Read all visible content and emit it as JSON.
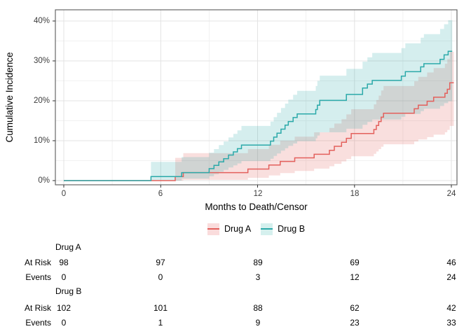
{
  "figure": {
    "y_axis": {
      "title": "Cumulative Incidence",
      "tick_labels": [
        "0%",
        "10%",
        "20%",
        "30%",
        "40%"
      ]
    },
    "x_axis": {
      "title": "Months to Death/Censor",
      "tick_labels": [
        "0",
        "6",
        "12",
        "18",
        "24"
      ]
    }
  },
  "legend": {
    "items": [
      {
        "label": "Drug A",
        "line_color": "#E3605C",
        "fill_color": "#FADCDC"
      },
      {
        "label": "Drug B",
        "line_color": "#2BA9A9",
        "fill_color": "#D5F0EE"
      }
    ]
  },
  "chart_data": {
    "type": "line",
    "subtype": "step-cumulative-incidence-with-confidence-bands",
    "title": "",
    "xlabel": "Months to Death/Censor",
    "ylabel": "Cumulative Incidence",
    "xlim": [
      0,
      24.35
    ],
    "ylim": [
      0,
      42.8
    ],
    "x_ticks": [
      0,
      6,
      12,
      18,
      24
    ],
    "y_ticks": [
      0,
      10,
      20,
      30,
      40
    ],
    "x_minor_ticks": [
      3,
      9,
      15,
      21
    ],
    "y_minor_ticks": [
      5,
      15,
      25,
      35
    ],
    "grid": true,
    "legend_position": "bottom",
    "band_opacity": 0.2,
    "point_format": [
      "month",
      "estimate_pct",
      "ci_lower_pct",
      "ci_upper_pct"
    ],
    "series": [
      {
        "name": "Drug A",
        "color": "#E3605C",
        "points": [
          [
            0,
            0,
            0,
            0
          ],
          [
            6.9,
            1.0,
            0,
            5.7
          ],
          [
            7.4,
            2.0,
            0.2,
            6.9
          ],
          [
            11.4,
            2.9,
            0.7,
            7.9
          ],
          [
            12.7,
            3.9,
            1.3,
            9.0
          ],
          [
            13.4,
            4.8,
            1.9,
            10.0
          ],
          [
            14.3,
            5.7,
            2.4,
            11.0
          ],
          [
            15.5,
            6.6,
            3.0,
            12.1
          ],
          [
            16.45,
            7.6,
            3.6,
            13.2
          ],
          [
            16.75,
            8.6,
            4.2,
            14.3
          ],
          [
            17.2,
            9.6,
            4.8,
            15.4
          ],
          [
            17.5,
            10.6,
            5.4,
            16.6
          ],
          [
            17.8,
            11.8,
            6.1,
            17.9
          ],
          [
            19.2,
            12.8,
            6.7,
            19.1
          ],
          [
            19.35,
            13.8,
            7.3,
            20.2
          ],
          [
            19.5,
            14.8,
            7.9,
            21.3
          ],
          [
            19.65,
            15.9,
            8.5,
            22.6
          ],
          [
            19.8,
            16.9,
            9.1,
            23.7
          ],
          [
            21.7,
            18.0,
            9.8,
            24.9
          ],
          [
            21.95,
            18.9,
            10.3,
            26.0
          ],
          [
            22.5,
            19.9,
            10.9,
            27.1
          ],
          [
            22.9,
            20.9,
            11.5,
            28.2
          ],
          [
            23.6,
            21.9,
            12.1,
            29.3
          ],
          [
            23.75,
            22.9,
            12.7,
            30.5
          ],
          [
            23.9,
            24.5,
            13.7,
            32.3
          ],
          [
            24.15,
            24.5,
            13.7,
            32.3
          ]
        ]
      },
      {
        "name": "Drug B",
        "color": "#2BA9A9",
        "points": [
          [
            0,
            0,
            0,
            0
          ],
          [
            5.4,
            1.0,
            0,
            4.7
          ],
          [
            7.3,
            2.0,
            0.5,
            5.9
          ],
          [
            9.0,
            3.0,
            1.1,
            7.0
          ],
          [
            9.3,
            3.8,
            1.6,
            7.9
          ],
          [
            9.6,
            4.7,
            2.2,
            8.9
          ],
          [
            9.9,
            5.5,
            2.7,
            9.8
          ],
          [
            10.2,
            6.4,
            3.3,
            10.8
          ],
          [
            10.5,
            7.2,
            3.8,
            11.7
          ],
          [
            10.75,
            8.0,
            4.3,
            12.6
          ],
          [
            11.0,
            8.9,
            4.9,
            13.7
          ],
          [
            12.8,
            9.9,
            5.5,
            14.8
          ],
          [
            13.0,
            10.9,
            6.2,
            15.9
          ],
          [
            13.2,
            11.9,
            6.8,
            17.0
          ],
          [
            13.45,
            12.9,
            7.5,
            18.2
          ],
          [
            13.7,
            13.9,
            8.1,
            19.3
          ],
          [
            13.9,
            14.8,
            8.7,
            20.3
          ],
          [
            14.2,
            15.8,
            9.3,
            21.5
          ],
          [
            14.45,
            16.7,
            9.9,
            22.5
          ],
          [
            15.6,
            17.8,
            10.6,
            23.7
          ],
          [
            15.7,
            18.9,
            11.3,
            25.0
          ],
          [
            15.85,
            20.1,
            12.1,
            26.3
          ],
          [
            17.5,
            21.6,
            13.0,
            28.0
          ],
          [
            18.5,
            23.2,
            14.0,
            29.8
          ],
          [
            18.8,
            24.2,
            14.7,
            30.9
          ],
          [
            19.1,
            25.1,
            15.3,
            32.0
          ],
          [
            20.9,
            26.2,
            16.0,
            33.2
          ],
          [
            21.15,
            27.3,
            16.7,
            34.4
          ],
          [
            22.1,
            28.5,
            17.4,
            35.8
          ],
          [
            22.3,
            29.3,
            18.0,
            36.7
          ],
          [
            23.3,
            30.4,
            18.7,
            38.0
          ],
          [
            23.55,
            31.5,
            19.4,
            39.2
          ],
          [
            23.8,
            32.4,
            19.9,
            40.2
          ],
          [
            24.05,
            32.4,
            19.9,
            40.2
          ]
        ]
      }
    ]
  },
  "risk_table": {
    "time_points": [
      "0",
      "6",
      "12",
      "18",
      "24"
    ],
    "groups": [
      {
        "name": "Drug A",
        "rows": [
          {
            "label": "At Risk",
            "values": [
              "98",
              "97",
              "89",
              "69",
              "46"
            ]
          },
          {
            "label": "Events",
            "values": [
              "0",
              "0",
              "3",
              "12",
              "24"
            ]
          }
        ]
      },
      {
        "name": "Drug B",
        "rows": [
          {
            "label": "At Risk",
            "values": [
              "102",
              "101",
              "88",
              "62",
              "42"
            ]
          },
          {
            "label": "Events",
            "values": [
              "0",
              "1",
              "9",
              "23",
              "33"
            ]
          }
        ]
      }
    ]
  }
}
